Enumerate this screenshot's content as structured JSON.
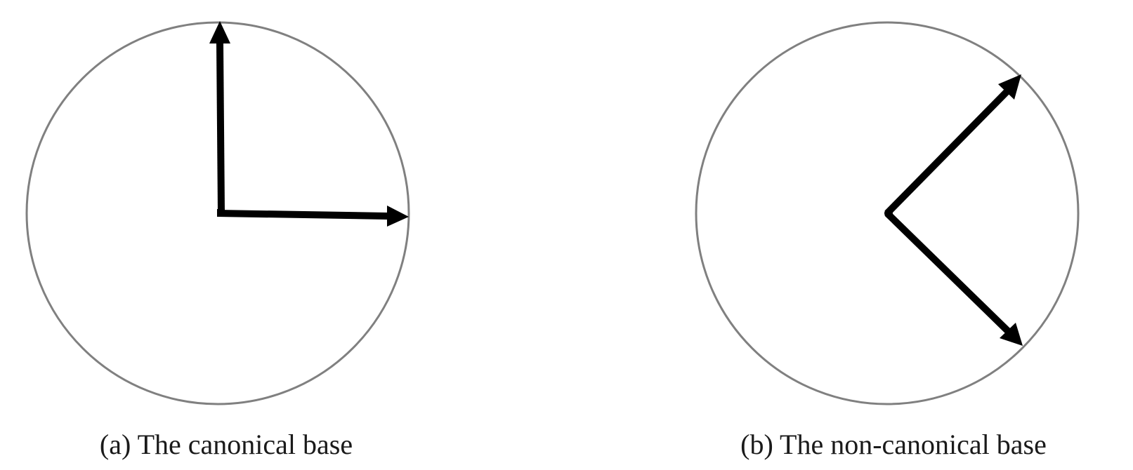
{
  "figure": {
    "panels": [
      {
        "id": "a",
        "caption": "(a) The canonical base",
        "vectors_deg": [
          90,
          0
        ]
      },
      {
        "id": "b",
        "caption": "(b) The non-canonical base",
        "vectors_deg": [
          45,
          -45
        ]
      }
    ],
    "colors": {
      "circle": "#808080",
      "arrow": "#000000",
      "caption": "#1a1a1a"
    }
  }
}
